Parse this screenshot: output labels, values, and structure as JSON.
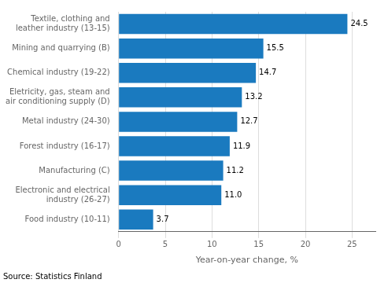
{
  "chart_data": {
    "type": "bar",
    "orientation": "horizontal",
    "categories": [
      "Food industry (10-11)",
      "Electronic and electrical\nindustry (26-27)",
      "Manufacturing (C)",
      "Forest industry (16-17)",
      "Metal industry (24-30)",
      "Eletricity, gas, steam and\nair conditioning supply (D)",
      "Chemical industry (19-22)",
      "Mining and quarrying (B)",
      "Textile, clothing and\nleather industry (13-15)"
    ],
    "values": [
      3.7,
      11.0,
      11.2,
      11.9,
      12.7,
      13.2,
      14.7,
      15.5,
      24.5
    ],
    "value_labels": [
      "3.7",
      "11.0",
      "11.2",
      "11.9",
      "12.7",
      "13.2",
      "14.7",
      "15.5",
      "24.5"
    ],
    "data_labels": true,
    "color": "#1a7abf",
    "xlabel": "Year-on-year change, %",
    "xlim": [
      0,
      27.5
    ],
    "xticks": [
      0,
      5,
      10,
      15,
      20,
      25
    ],
    "grid": true,
    "annotations": [
      "Source: Statistics Finland"
    ]
  }
}
